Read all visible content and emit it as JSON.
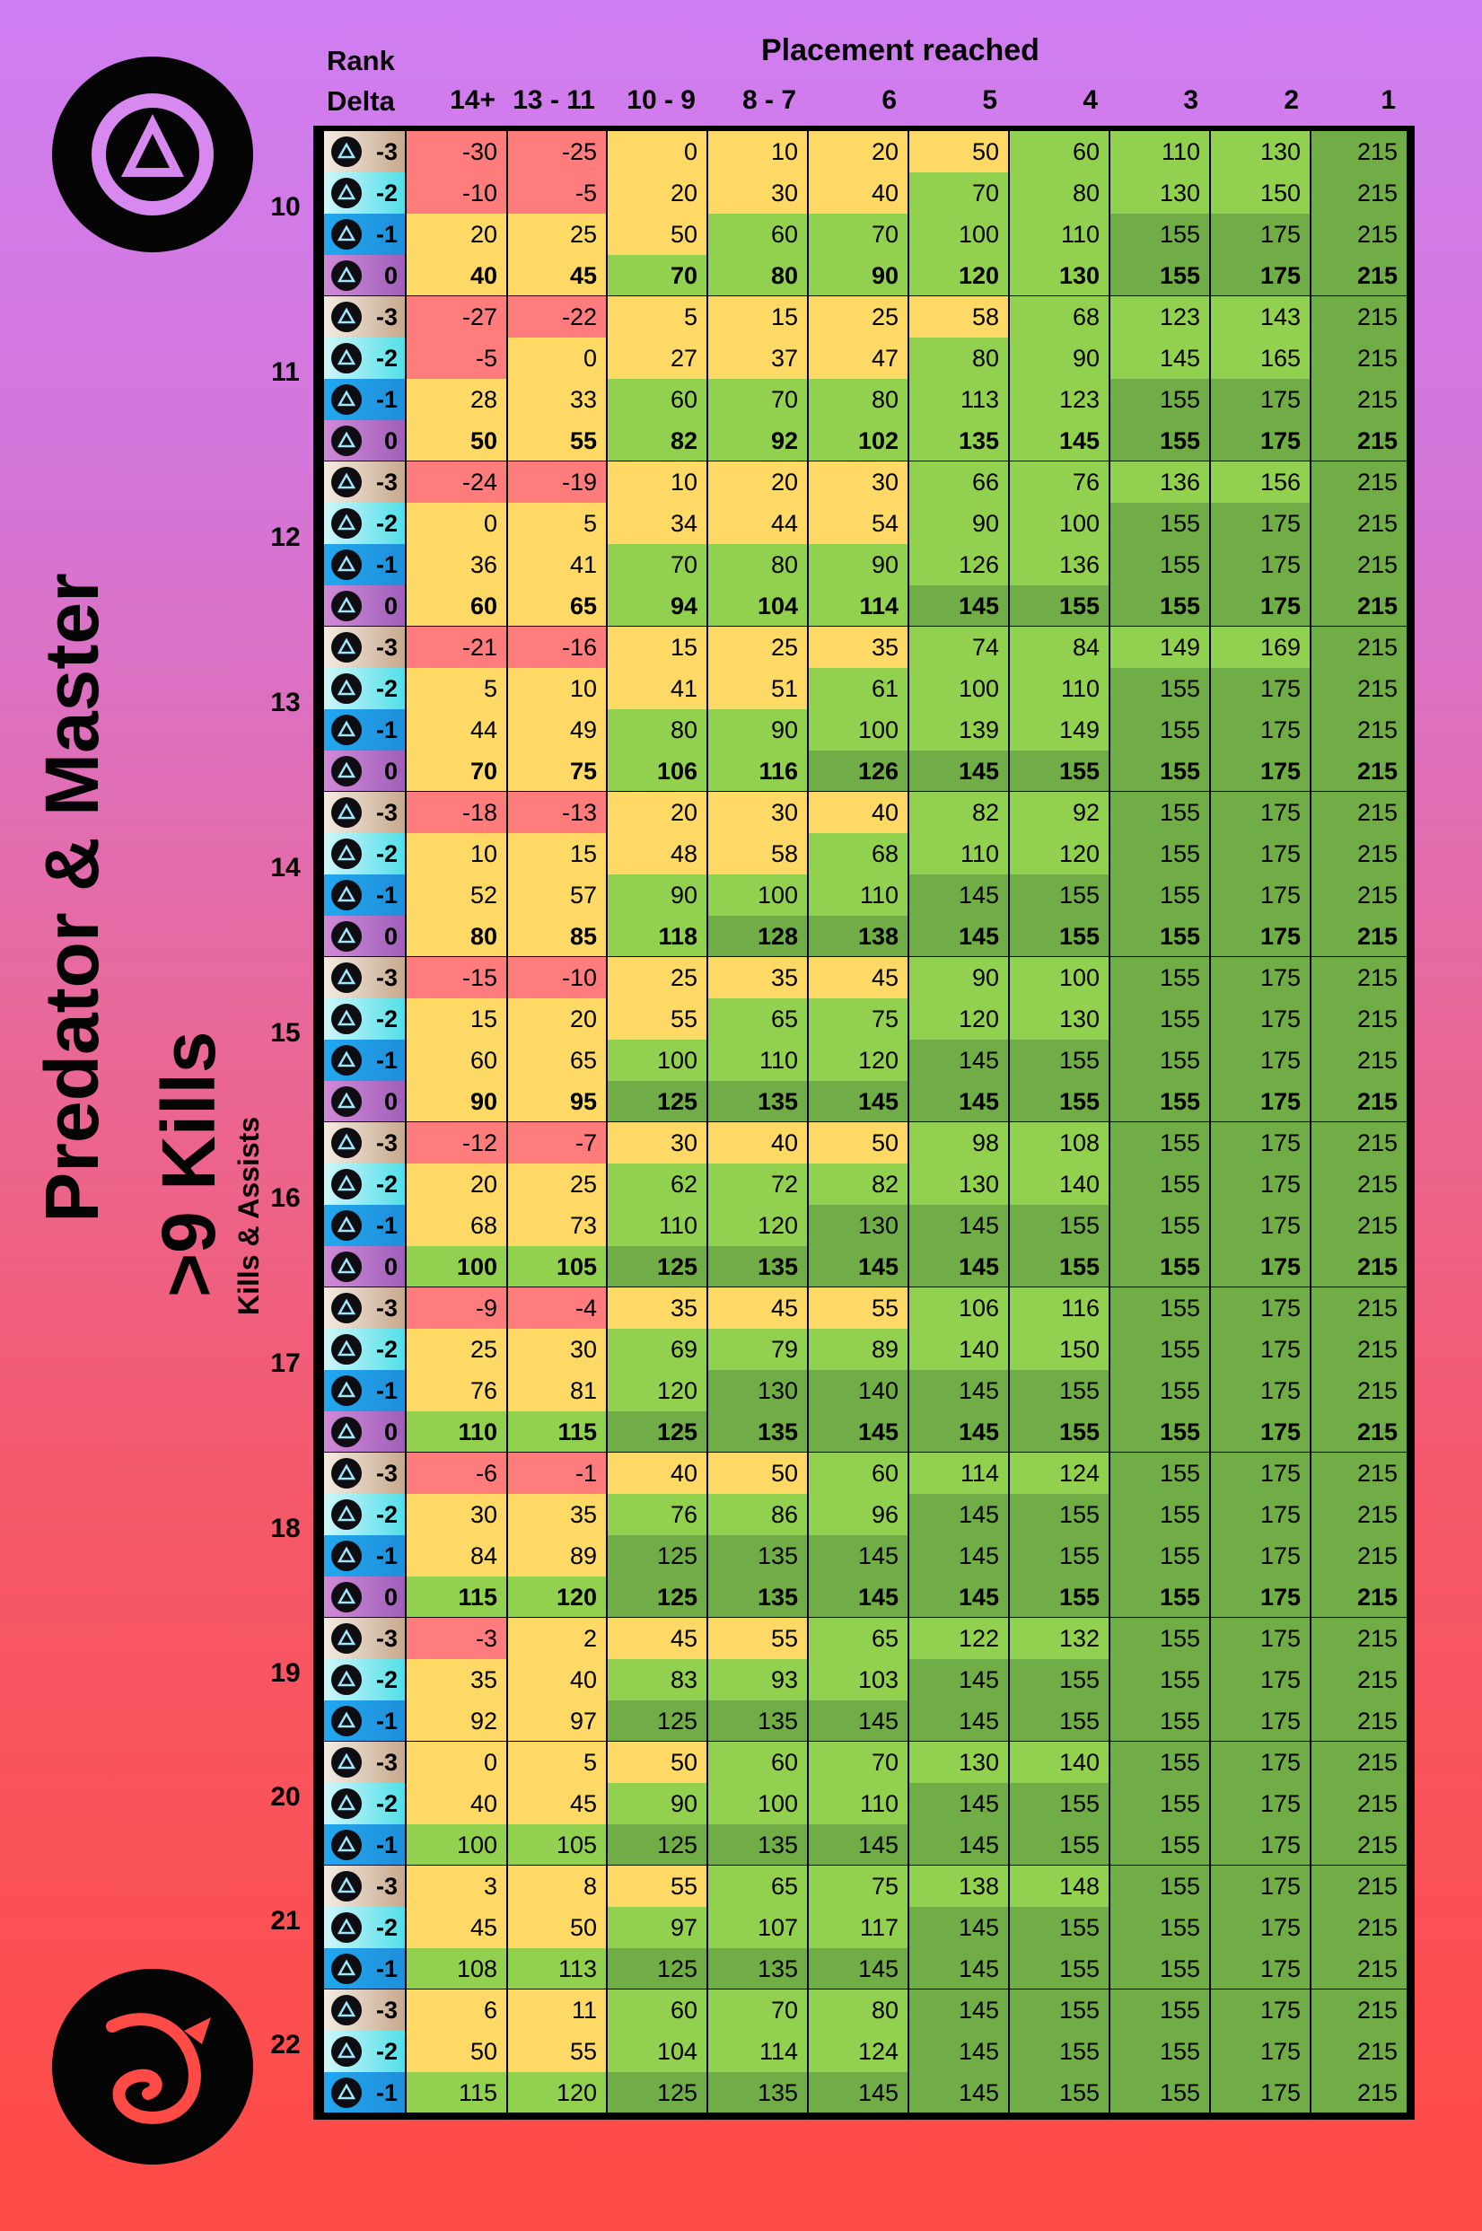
{
  "side": {
    "title": "Predator & Master",
    "kills": ">9 Kills",
    "sub": "Kills & Assists"
  },
  "header": {
    "rank": "Rank",
    "delta": "Delta",
    "placement": "Placement reached"
  },
  "columns": [
    "14+",
    "13 - 11",
    "10 - 9",
    "8 - 7",
    "6",
    "5",
    "4",
    "3",
    "2",
    "1"
  ],
  "colors": {
    "red": "#ff7c7c",
    "yellow": "#ffd966",
    "green_light": "#92d050",
    "green_dark": "#70ad47"
  },
  "groups": [
    {
      "rank": "10",
      "rows": [
        {
          "delta": "-3",
          "values": [
            -30,
            -25,
            0,
            10,
            20,
            50,
            60,
            110,
            130,
            215
          ]
        },
        {
          "delta": "-2",
          "values": [
            -10,
            -5,
            20,
            30,
            40,
            70,
            80,
            130,
            150,
            215
          ]
        },
        {
          "delta": "-1",
          "values": [
            20,
            25,
            50,
            60,
            70,
            100,
            110,
            155,
            175,
            215
          ]
        },
        {
          "delta": "0",
          "values": [
            40,
            45,
            70,
            80,
            90,
            120,
            130,
            155,
            175,
            215
          ]
        }
      ]
    },
    {
      "rank": "11",
      "rows": [
        {
          "delta": "-3",
          "values": [
            -27,
            -22,
            5,
            15,
            25,
            58,
            68,
            123,
            143,
            215
          ]
        },
        {
          "delta": "-2",
          "values": [
            -5,
            0,
            27,
            37,
            47,
            80,
            90,
            145,
            165,
            215
          ]
        },
        {
          "delta": "-1",
          "values": [
            28,
            33,
            60,
            70,
            80,
            113,
            123,
            155,
            175,
            215
          ]
        },
        {
          "delta": "0",
          "values": [
            50,
            55,
            82,
            92,
            102,
            135,
            145,
            155,
            175,
            215
          ]
        }
      ]
    },
    {
      "rank": "12",
      "rows": [
        {
          "delta": "-3",
          "values": [
            -24,
            -19,
            10,
            20,
            30,
            66,
            76,
            136,
            156,
            215
          ]
        },
        {
          "delta": "-2",
          "values": [
            0,
            5,
            34,
            44,
            54,
            90,
            100,
            155,
            175,
            215
          ]
        },
        {
          "delta": "-1",
          "values": [
            36,
            41,
            70,
            80,
            90,
            126,
            136,
            155,
            175,
            215
          ]
        },
        {
          "delta": "0",
          "values": [
            60,
            65,
            94,
            104,
            114,
            145,
            155,
            155,
            175,
            215
          ]
        }
      ]
    },
    {
      "rank": "13",
      "rows": [
        {
          "delta": "-3",
          "values": [
            -21,
            -16,
            15,
            25,
            35,
            74,
            84,
            149,
            169,
            215
          ]
        },
        {
          "delta": "-2",
          "values": [
            5,
            10,
            41,
            51,
            61,
            100,
            110,
            155,
            175,
            215
          ]
        },
        {
          "delta": "-1",
          "values": [
            44,
            49,
            80,
            90,
            100,
            139,
            149,
            155,
            175,
            215
          ]
        },
        {
          "delta": "0",
          "values": [
            70,
            75,
            106,
            116,
            126,
            145,
            155,
            155,
            175,
            215
          ]
        }
      ]
    },
    {
      "rank": "14",
      "rows": [
        {
          "delta": "-3",
          "values": [
            -18,
            -13,
            20,
            30,
            40,
            82,
            92,
            155,
            175,
            215
          ]
        },
        {
          "delta": "-2",
          "values": [
            10,
            15,
            48,
            58,
            68,
            110,
            120,
            155,
            175,
            215
          ]
        },
        {
          "delta": "-1",
          "values": [
            52,
            57,
            90,
            100,
            110,
            145,
            155,
            155,
            175,
            215
          ]
        },
        {
          "delta": "0",
          "values": [
            80,
            85,
            118,
            128,
            138,
            145,
            155,
            155,
            175,
            215
          ]
        }
      ]
    },
    {
      "rank": "15",
      "rows": [
        {
          "delta": "-3",
          "values": [
            -15,
            -10,
            25,
            35,
            45,
            90,
            100,
            155,
            175,
            215
          ]
        },
        {
          "delta": "-2",
          "values": [
            15,
            20,
            55,
            65,
            75,
            120,
            130,
            155,
            175,
            215
          ]
        },
        {
          "delta": "-1",
          "values": [
            60,
            65,
            100,
            110,
            120,
            145,
            155,
            155,
            175,
            215
          ]
        },
        {
          "delta": "0",
          "values": [
            90,
            95,
            125,
            135,
            145,
            145,
            155,
            155,
            175,
            215
          ]
        }
      ]
    },
    {
      "rank": "16",
      "rows": [
        {
          "delta": "-3",
          "values": [
            -12,
            -7,
            30,
            40,
            50,
            98,
            108,
            155,
            175,
            215
          ]
        },
        {
          "delta": "-2",
          "values": [
            20,
            25,
            62,
            72,
            82,
            130,
            140,
            155,
            175,
            215
          ]
        },
        {
          "delta": "-1",
          "values": [
            68,
            73,
            110,
            120,
            130,
            145,
            155,
            155,
            175,
            215
          ]
        },
        {
          "delta": "0",
          "values": [
            100,
            105,
            125,
            135,
            145,
            145,
            155,
            155,
            175,
            215
          ]
        }
      ]
    },
    {
      "rank": "17",
      "rows": [
        {
          "delta": "-3",
          "values": [
            -9,
            -4,
            35,
            45,
            55,
            106,
            116,
            155,
            175,
            215
          ]
        },
        {
          "delta": "-2",
          "values": [
            25,
            30,
            69,
            79,
            89,
            140,
            150,
            155,
            175,
            215
          ]
        },
        {
          "delta": "-1",
          "values": [
            76,
            81,
            120,
            130,
            140,
            145,
            155,
            155,
            175,
            215
          ]
        },
        {
          "delta": "0",
          "values": [
            110,
            115,
            125,
            135,
            145,
            145,
            155,
            155,
            175,
            215
          ]
        }
      ]
    },
    {
      "rank": "18",
      "rows": [
        {
          "delta": "-3",
          "values": [
            -6,
            -1,
            40,
            50,
            60,
            114,
            124,
            155,
            175,
            215
          ]
        },
        {
          "delta": "-2",
          "values": [
            30,
            35,
            76,
            86,
            96,
            145,
            155,
            155,
            175,
            215
          ]
        },
        {
          "delta": "-1",
          "values": [
            84,
            89,
            125,
            135,
            145,
            145,
            155,
            155,
            175,
            215
          ]
        },
        {
          "delta": "0",
          "values": [
            115,
            120,
            125,
            135,
            145,
            145,
            155,
            155,
            175,
            215
          ]
        }
      ]
    },
    {
      "rank": "19",
      "rows": [
        {
          "delta": "-3",
          "values": [
            -3,
            2,
            45,
            55,
            65,
            122,
            132,
            155,
            175,
            215
          ]
        },
        {
          "delta": "-2",
          "values": [
            35,
            40,
            83,
            93,
            103,
            145,
            155,
            155,
            175,
            215
          ]
        },
        {
          "delta": "-1",
          "values": [
            92,
            97,
            125,
            135,
            145,
            145,
            155,
            155,
            175,
            215
          ]
        }
      ]
    },
    {
      "rank": "20",
      "rows": [
        {
          "delta": "-3",
          "values": [
            0,
            5,
            50,
            60,
            70,
            130,
            140,
            155,
            175,
            215
          ]
        },
        {
          "delta": "-2",
          "values": [
            40,
            45,
            90,
            100,
            110,
            145,
            155,
            155,
            175,
            215
          ]
        },
        {
          "delta": "-1",
          "values": [
            100,
            105,
            125,
            135,
            145,
            145,
            155,
            155,
            175,
            215
          ]
        }
      ]
    },
    {
      "rank": "21",
      "rows": [
        {
          "delta": "-3",
          "values": [
            3,
            8,
            55,
            65,
            75,
            138,
            148,
            155,
            175,
            215
          ]
        },
        {
          "delta": "-2",
          "values": [
            45,
            50,
            97,
            107,
            117,
            145,
            155,
            155,
            175,
            215
          ]
        },
        {
          "delta": "-1",
          "values": [
            108,
            113,
            125,
            135,
            145,
            145,
            155,
            155,
            175,
            215
          ]
        }
      ]
    },
    {
      "rank": "22",
      "rows": [
        {
          "delta": "-3",
          "values": [
            6,
            11,
            60,
            70,
            80,
            145,
            155,
            155,
            175,
            215
          ]
        },
        {
          "delta": "-2",
          "values": [
            50,
            55,
            104,
            114,
            124,
            145,
            155,
            155,
            175,
            215
          ]
        },
        {
          "delta": "-1",
          "values": [
            115,
            120,
            125,
            135,
            145,
            145,
            155,
            155,
            175,
            215
          ]
        }
      ]
    }
  ]
}
